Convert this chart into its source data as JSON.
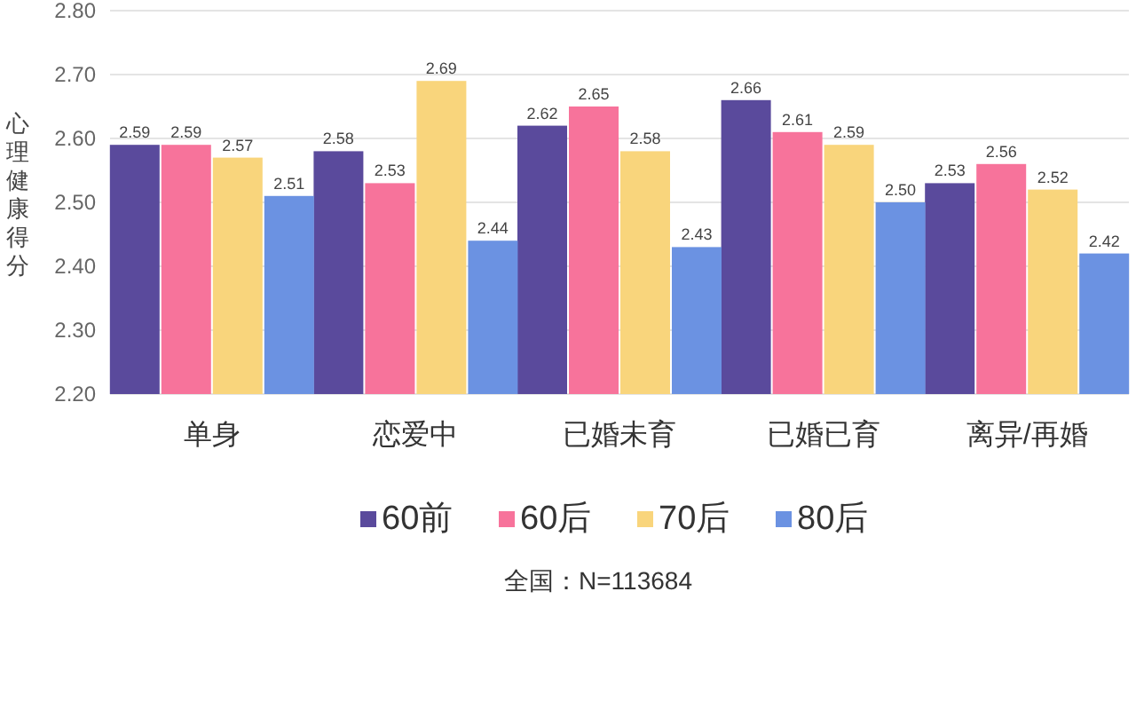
{
  "chart_data": {
    "type": "bar",
    "ylabel": "心理健康得分",
    "categories": [
      "单身",
      "恋爱中",
      "已婚未育",
      "已婚已育",
      "离异/再婚"
    ],
    "series": [
      {
        "name": "60前",
        "color": "#5a4a9c",
        "values": [
          2.59,
          2.58,
          2.62,
          2.66,
          2.53
        ],
        "value_labels": [
          "2.59",
          "2.58",
          "2.62",
          "2.66",
          "2.53"
        ]
      },
      {
        "name": "60后",
        "color": "#f7739b",
        "values": [
          2.59,
          2.53,
          2.65,
          2.61,
          2.56
        ],
        "value_labels": [
          "2.59",
          "2.53",
          "2.65",
          "2.61",
          "2.56"
        ]
      },
      {
        "name": "70后",
        "color": "#f9d57c",
        "values": [
          2.57,
          2.69,
          2.58,
          2.59,
          2.52
        ],
        "value_labels": [
          "2.57",
          "2.69",
          "2.58",
          "2.59",
          "2.52"
        ]
      },
      {
        "name": "80后",
        "color": "#6b92e2",
        "values": [
          2.51,
          2.44,
          2.43,
          2.5,
          2.42
        ],
        "value_labels": [
          "2.51",
          "2.44",
          "2.43",
          "2.50",
          "2.42"
        ]
      }
    ],
    "ylim": [
      2.2,
      2.8
    ],
    "yticks": [
      {
        "value": 2.2,
        "label": "2.20"
      },
      {
        "value": 2.3,
        "label": "2.30"
      },
      {
        "value": 2.4,
        "label": "2.40"
      },
      {
        "value": 2.5,
        "label": "2.50"
      },
      {
        "value": 2.6,
        "label": "2.60"
      },
      {
        "value": 2.7,
        "label": "2.70"
      },
      {
        "value": 2.8,
        "label": "2.80"
      }
    ],
    "grid": "y",
    "legend": "bottom",
    "annotations": [
      "全国：N=113684"
    ]
  }
}
